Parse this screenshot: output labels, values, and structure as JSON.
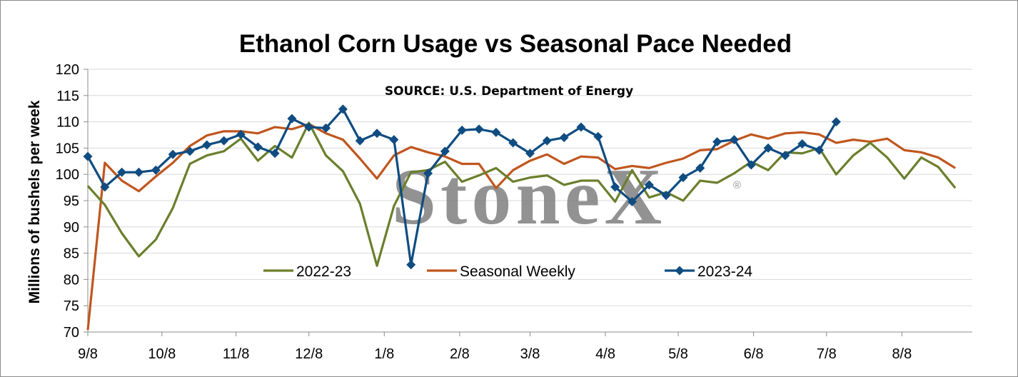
{
  "chart_data": {
    "type": "line",
    "title": "Ethanol Corn Usage vs Seasonal Pace Needed",
    "ylabel": "Millions of bushels per week",
    "xlabel": "",
    "source_note": "SOURCE: U.S. Department of Energy",
    "watermark": "StoneX",
    "watermark_mark": "®",
    "ylim": [
      70,
      120
    ],
    "yticks": [
      70,
      75,
      80,
      85,
      90,
      95,
      100,
      105,
      110,
      115,
      120
    ],
    "xlim_weeks": [
      0,
      52
    ],
    "xtick_labels": [
      "9/8",
      "10/8",
      "11/8",
      "12/8",
      "1/8",
      "2/8",
      "3/8",
      "4/8",
      "5/8",
      "6/8",
      "7/8",
      "8/8"
    ],
    "xtick_weeks": [
      0,
      4.357,
      8.714,
      13.0,
      17.43,
      21.86,
      26.0,
      30.43,
      34.71,
      39.14,
      43.43,
      47.86
    ],
    "grid": "horizontal",
    "legend_position": "inside-bottom",
    "series": [
      {
        "name": "2022-23",
        "color": "#6a7f2c",
        "marker": "none",
        "values": [
          97.8,
          94.2,
          88.8,
          84.4,
          87.6,
          93.6,
          102.0,
          103.6,
          104.4,
          106.8,
          102.6,
          105.4,
          103.2,
          109.8,
          103.6,
          100.6,
          94.4,
          82.6,
          94.0,
          100.4,
          100.8,
          102.4,
          98.6,
          99.8,
          101.2,
          98.6,
          99.4,
          99.8,
          98.0,
          98.8,
          98.8,
          94.8,
          100.8,
          95.6,
          96.6,
          95.0,
          98.8,
          98.4,
          100.2,
          102.4,
          100.8,
          104.2,
          104.0,
          105.0,
          100.0,
          103.6,
          106.0,
          103.2,
          99.2,
          103.2,
          101.4,
          97.4
        ]
      },
      {
        "name": "Seasonal Weekly",
        "color": "#c0561e",
        "marker": "none",
        "values": [
          70.4,
          102.2,
          98.8,
          96.8,
          99.6,
          102.2,
          105.4,
          107.4,
          108.2,
          108.2,
          107.8,
          109.0,
          108.6,
          109.6,
          107.8,
          106.6,
          103.0,
          99.2,
          103.6,
          105.2,
          104.2,
          103.4,
          102.0,
          102.0,
          97.4,
          100.8,
          102.6,
          103.8,
          102.0,
          103.4,
          103.2,
          101.0,
          101.6,
          101.2,
          102.2,
          103.0,
          104.6,
          104.8,
          106.4,
          107.6,
          106.8,
          107.8,
          108.0,
          107.6,
          106.0,
          106.6,
          106.2,
          106.8,
          104.6,
          104.2,
          103.2,
          101.2
        ]
      },
      {
        "name": "2023-24",
        "color": "#0f4c81",
        "marker": "diamond",
        "values": [
          103.4,
          97.6,
          100.4,
          100.4,
          100.8,
          103.8,
          104.4,
          105.6,
          106.4,
          107.6,
          105.2,
          104.0,
          110.6,
          109.0,
          108.8,
          112.4,
          106.4,
          107.8,
          106.6,
          82.8,
          100.2,
          104.4,
          108.4,
          108.6,
          108.0,
          106.0,
          104.0,
          106.4,
          107.0,
          109.0,
          107.2,
          97.6,
          94.8,
          98.0,
          96.0,
          99.4,
          101.2,
          106.2,
          106.6,
          101.8,
          105.0,
          103.6,
          105.8,
          104.6,
          110.0
        ]
      }
    ]
  }
}
